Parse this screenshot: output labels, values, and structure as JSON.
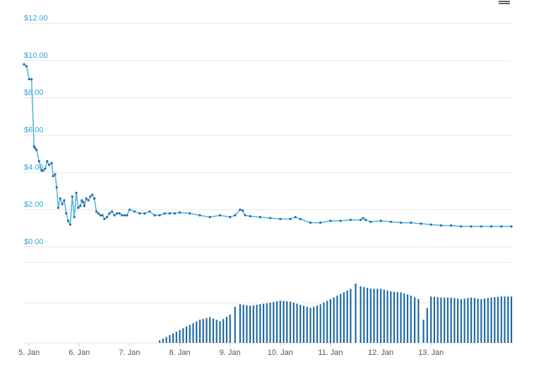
{
  "chart_data": [
    {
      "type": "line",
      "y_tick_labels": [
        "$12.00",
        "$10.00",
        "$8.00",
        "$6.00",
        "$4.00",
        "$2.00",
        "$0.00"
      ],
      "ylim": [
        0,
        12
      ],
      "x_tick_labels": [
        "5. Jan",
        "6. Jan",
        "7. Jan",
        "8. Jan",
        "9. Jan",
        "10. Jan",
        "11. Jan",
        "12. Jan",
        "13. Jan"
      ],
      "xlim": [
        4.9,
        14.6
      ],
      "grid": true,
      "line_color": "#4fb1e0",
      "marker_color": "#1f6aa5",
      "x": [
        4.9,
        4.95,
        5.0,
        5.05,
        5.1,
        5.12,
        5.15,
        5.2,
        5.25,
        5.28,
        5.32,
        5.36,
        5.4,
        5.45,
        5.48,
        5.52,
        5.55,
        5.58,
        5.62,
        5.66,
        5.7,
        5.74,
        5.78,
        5.82,
        5.86,
        5.9,
        5.94,
        5.98,
        6.02,
        6.05,
        6.08,
        6.1,
        6.14,
        6.18,
        6.22,
        6.26,
        6.3,
        6.34,
        6.38,
        6.42,
        6.46,
        6.5,
        6.55,
        6.6,
        6.65,
        6.7,
        6.75,
        6.8,
        6.85,
        6.9,
        6.95,
        7.0,
        7.1,
        7.2,
        7.3,
        7.4,
        7.5,
        7.6,
        7.7,
        7.8,
        7.9,
        8.0,
        8.2,
        8.4,
        8.6,
        8.8,
        9.0,
        9.1,
        9.2,
        9.25,
        9.3,
        9.4,
        9.6,
        9.8,
        10.0,
        10.2,
        10.3,
        10.4,
        10.6,
        10.8,
        11.0,
        11.2,
        11.4,
        11.6,
        11.65,
        11.7,
        11.8,
        12.0,
        12.2,
        12.4,
        12.6,
        12.8,
        13.0,
        13.2,
        13.4,
        13.6,
        13.8,
        14.0,
        14.2,
        14.4,
        14.6
      ],
      "y": [
        9.8,
        9.7,
        9.0,
        9.0,
        5.4,
        5.3,
        5.2,
        4.6,
        4.1,
        4.1,
        4.2,
        4.6,
        4.4,
        4.5,
        3.8,
        3.9,
        3.2,
        2.1,
        2.6,
        2.3,
        2.5,
        1.8,
        1.4,
        1.2,
        2.7,
        1.6,
        2.9,
        2.1,
        2.2,
        2.5,
        2.4,
        2.2,
        2.6,
        2.5,
        2.7,
        2.8,
        2.6,
        1.9,
        1.8,
        1.7,
        1.7,
        1.5,
        1.6,
        1.8,
        1.9,
        1.7,
        1.8,
        1.8,
        1.7,
        1.7,
        1.7,
        2.0,
        1.9,
        1.8,
        1.8,
        1.9,
        1.7,
        1.7,
        1.8,
        1.8,
        1.8,
        1.85,
        1.8,
        1.7,
        1.6,
        1.7,
        1.6,
        1.7,
        2.0,
        1.95,
        1.7,
        1.65,
        1.6,
        1.55,
        1.5,
        1.5,
        1.6,
        1.5,
        1.3,
        1.3,
        1.4,
        1.4,
        1.45,
        1.45,
        1.55,
        1.45,
        1.35,
        1.4,
        1.35,
        1.3,
        1.3,
        1.25,
        1.2,
        1.15,
        1.15,
        1.1,
        1.1,
        1.1,
        1.1,
        1.1,
        1.1
      ]
    },
    {
      "type": "bar",
      "bar_color": "#1f6aa5",
      "note_units": "relative volume (no axis printed)",
      "x": [
        7.6,
        7.8,
        8.0,
        8.2,
        8.4,
        8.6,
        8.8,
        9.0,
        9.1,
        9.2,
        9.4,
        9.6,
        9.8,
        10.0,
        10.2,
        10.4,
        10.6,
        10.8,
        11.0,
        11.2,
        11.4,
        11.5,
        11.6,
        11.8,
        12.0,
        12.2,
        12.4,
        12.6,
        12.75,
        12.85,
        13.0,
        13.2,
        13.4,
        13.6,
        13.8,
        14.0,
        14.2,
        14.4,
        14.6
      ],
      "values": [
        0.05,
        0.15,
        0.25,
        0.35,
        0.45,
        0.5,
        0.42,
        0.55,
        0.7,
        0.75,
        0.72,
        0.75,
        0.78,
        0.82,
        0.8,
        0.74,
        0.68,
        0.75,
        0.85,
        0.95,
        1.05,
        1.15,
        1.1,
        1.05,
        1.05,
        1.0,
        0.98,
        0.92,
        0.85,
        0.45,
        0.9,
        0.88,
        0.88,
        0.85,
        0.88,
        0.85,
        0.88,
        0.9,
        0.9
      ]
    }
  ]
}
